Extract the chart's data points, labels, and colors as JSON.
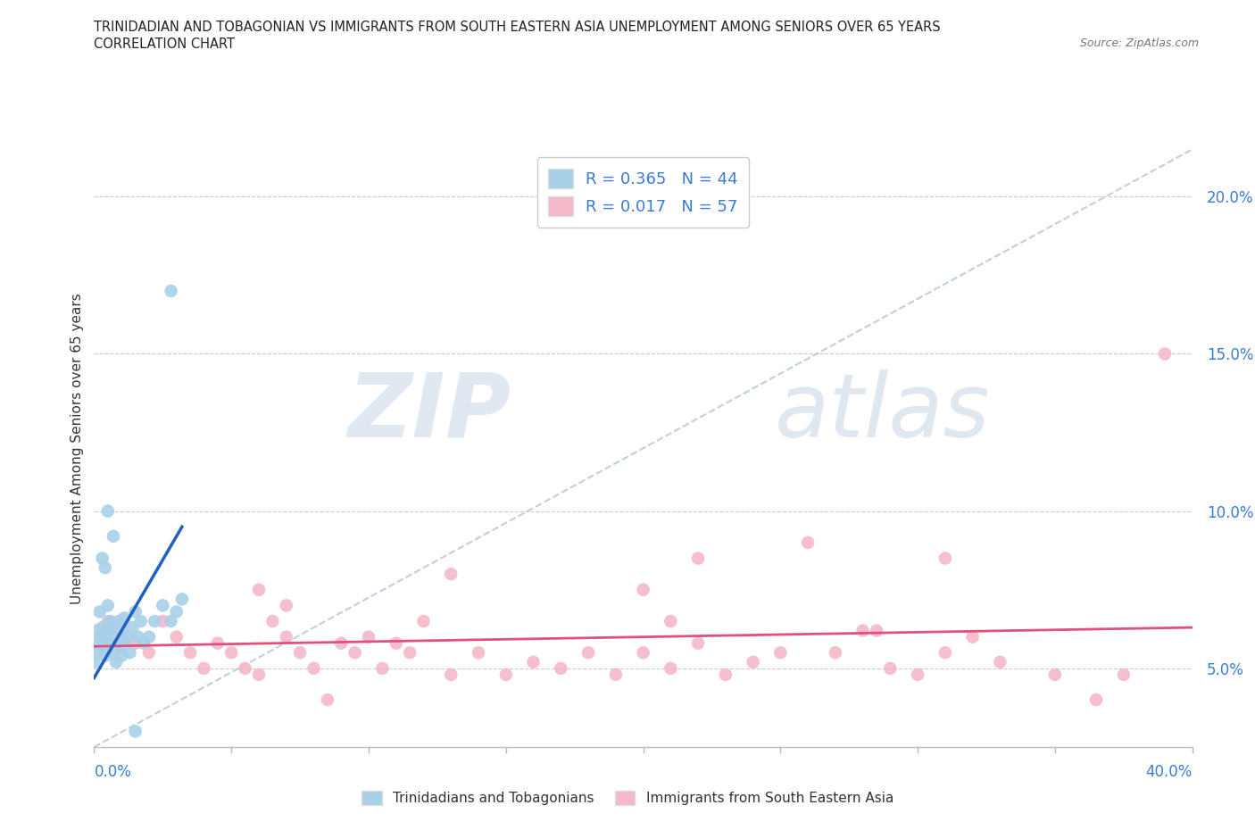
{
  "title_line1": "TRINIDADIAN AND TOBAGONIAN VS IMMIGRANTS FROM SOUTH EASTERN ASIA UNEMPLOYMENT AMONG SENIORS OVER 65 YEARS",
  "title_line2": "CORRELATION CHART",
  "source": "Source: ZipAtlas.com",
  "ylabel": "Unemployment Among Seniors over 65 years",
  "legend_blue_label": "Trinidadians and Tobagonians",
  "legend_pink_label": "Immigrants from South Eastern Asia",
  "R_blue": 0.365,
  "N_blue": 44,
  "R_pink": 0.017,
  "N_pink": 57,
  "blue_color": "#a8d0e8",
  "pink_color": "#f4b8c8",
  "blue_line_color": "#2060c0",
  "pink_line_color": "#e0507a",
  "dash_line_color": "#b0c4d8",
  "xlim": [
    0.0,
    0.4
  ],
  "ylim": [
    0.025,
    0.215
  ],
  "yticks": [
    0.05,
    0.1,
    0.15,
    0.2
  ],
  "ytick_labels": [
    "5.0%",
    "10.0%",
    "15.0%",
    "20.0%"
  ],
  "watermark_zip": "ZIP",
  "watermark_atlas": "atlas",
  "blue_scatter_x": [
    0.0,
    0.0,
    0.001,
    0.001,
    0.002,
    0.002,
    0.003,
    0.003,
    0.004,
    0.004,
    0.005,
    0.005,
    0.005,
    0.006,
    0.006,
    0.007,
    0.007,
    0.008,
    0.008,
    0.009,
    0.009,
    0.01,
    0.01,
    0.011,
    0.011,
    0.012,
    0.013,
    0.014,
    0.015,
    0.016,
    0.017,
    0.018,
    0.02,
    0.022,
    0.025,
    0.028,
    0.03,
    0.032,
    0.005,
    0.007,
    0.003,
    0.004,
    0.028,
    0.015
  ],
  "blue_scatter_y": [
    0.052,
    0.058,
    0.055,
    0.062,
    0.06,
    0.068,
    0.057,
    0.063,
    0.054,
    0.06,
    0.056,
    0.062,
    0.07,
    0.058,
    0.065,
    0.055,
    0.063,
    0.052,
    0.06,
    0.057,
    0.065,
    0.054,
    0.062,
    0.058,
    0.066,
    0.06,
    0.055,
    0.063,
    0.068,
    0.06,
    0.065,
    0.058,
    0.06,
    0.065,
    0.07,
    0.065,
    0.068,
    0.072,
    0.1,
    0.092,
    0.085,
    0.082,
    0.17,
    0.03
  ],
  "blue_line_x": [
    0.0,
    0.032
  ],
  "blue_line_y": [
    0.047,
    0.095
  ],
  "pink_scatter_x": [
    0.005,
    0.01,
    0.015,
    0.02,
    0.025,
    0.03,
    0.035,
    0.04,
    0.045,
    0.05,
    0.055,
    0.06,
    0.065,
    0.07,
    0.075,
    0.08,
    0.085,
    0.09,
    0.095,
    0.1,
    0.105,
    0.11,
    0.115,
    0.12,
    0.13,
    0.14,
    0.15,
    0.16,
    0.17,
    0.18,
    0.19,
    0.2,
    0.21,
    0.22,
    0.23,
    0.24,
    0.25,
    0.26,
    0.27,
    0.28,
    0.29,
    0.3,
    0.31,
    0.33,
    0.35,
    0.365,
    0.375,
    0.39,
    0.06,
    0.07,
    0.13,
    0.2,
    0.21,
    0.22,
    0.31,
    0.32,
    0.285
  ],
  "pink_scatter_y": [
    0.065,
    0.06,
    0.058,
    0.055,
    0.065,
    0.06,
    0.055,
    0.05,
    0.058,
    0.055,
    0.05,
    0.048,
    0.065,
    0.06,
    0.055,
    0.05,
    0.04,
    0.058,
    0.055,
    0.06,
    0.05,
    0.058,
    0.055,
    0.065,
    0.048,
    0.055,
    0.048,
    0.052,
    0.05,
    0.055,
    0.048,
    0.055,
    0.05,
    0.058,
    0.048,
    0.052,
    0.055,
    0.09,
    0.055,
    0.062,
    0.05,
    0.048,
    0.055,
    0.052,
    0.048,
    0.04,
    0.048,
    0.15,
    0.075,
    0.07,
    0.08,
    0.075,
    0.065,
    0.085,
    0.085,
    0.06,
    0.062
  ],
  "pink_line_x": [
    0.0,
    0.4
  ],
  "pink_line_y": [
    0.057,
    0.063
  ],
  "diag_line_x": [
    0.0,
    0.4
  ],
  "diag_line_y": [
    0.025,
    0.215
  ]
}
